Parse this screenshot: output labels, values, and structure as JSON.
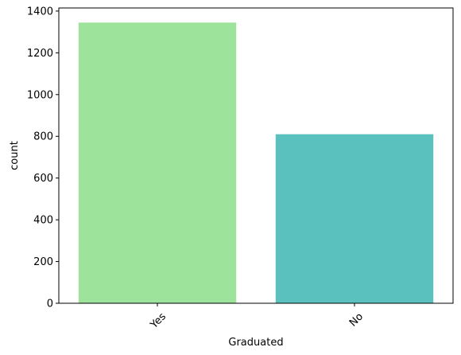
{
  "chart_data": {
    "type": "bar",
    "categories": [
      "Yes",
      "No"
    ],
    "values": [
      1345,
      810
    ],
    "colors": [
      "#9de39b",
      "#5ac1bf"
    ],
    "xlabel": "Graduated",
    "ylabel": "count",
    "ylim": [
      0,
      1415
    ],
    "yticks": [
      0,
      200,
      400,
      600,
      800,
      1000,
      1200,
      1400
    ],
    "xtick_rotation_deg": 45,
    "grid": false,
    "legend": "none"
  }
}
